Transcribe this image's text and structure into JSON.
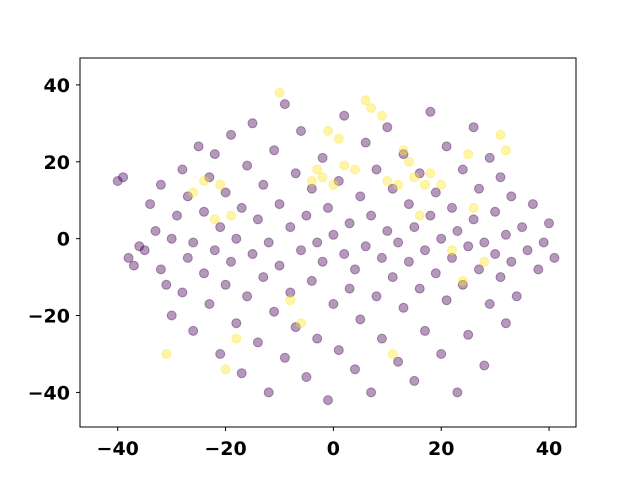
{
  "chart_data": {
    "type": "scatter",
    "title": "",
    "xlabel": "",
    "ylabel": "",
    "xlim": [
      -47,
      45
    ],
    "ylim": [
      -49,
      47
    ],
    "xticks": [
      -40,
      -20,
      0,
      20,
      40
    ],
    "yticks": [
      -40,
      -20,
      0,
      20,
      40
    ],
    "xtick_labels": [
      "−40",
      "−20",
      "0",
      "20",
      "40"
    ],
    "ytick_labels": [
      "−40",
      "−20",
      "0",
      "20",
      "40"
    ],
    "grid": false,
    "legend": "none",
    "marker_alpha": 0.4,
    "colors": {
      "class_0": "#440154",
      "class_1": "#fde725"
    },
    "series": [
      {
        "name": "",
        "color": "#440154",
        "points": [
          [
            -40,
            15
          ],
          [
            -39,
            16
          ],
          [
            -38,
            -5
          ],
          [
            -37,
            -7
          ],
          [
            -36,
            -2
          ],
          [
            -35,
            -3
          ],
          [
            -34,
            9
          ],
          [
            -33,
            2
          ],
          [
            -32,
            -8
          ],
          [
            -32,
            14
          ],
          [
            -31,
            -12
          ],
          [
            -30,
            -20
          ],
          [
            -30,
            0
          ],
          [
            -29,
            6
          ],
          [
            -28,
            -14
          ],
          [
            -28,
            18
          ],
          [
            -27,
            -5
          ],
          [
            -27,
            11
          ],
          [
            -26,
            -24
          ],
          [
            -26,
            -1
          ],
          [
            -25,
            24
          ],
          [
            -24,
            -9
          ],
          [
            -24,
            7
          ],
          [
            -23,
            -17
          ],
          [
            -23,
            16
          ],
          [
            -22,
            -3
          ],
          [
            -22,
            22
          ],
          [
            -21,
            -30
          ],
          [
            -21,
            3
          ],
          [
            -20,
            -12
          ],
          [
            -20,
            12
          ],
          [
            -19,
            -6
          ],
          [
            -19,
            27
          ],
          [
            -18,
            -22
          ],
          [
            -18,
            0
          ],
          [
            -17,
            -35
          ],
          [
            -17,
            8
          ],
          [
            -16,
            -15
          ],
          [
            -16,
            19
          ],
          [
            -15,
            -4
          ],
          [
            -15,
            30
          ],
          [
            -14,
            -27
          ],
          [
            -14,
            5
          ],
          [
            -13,
            -10
          ],
          [
            -13,
            14
          ],
          [
            -12,
            -40
          ],
          [
            -12,
            -1
          ],
          [
            -11,
            -19
          ],
          [
            -11,
            23
          ],
          [
            -10,
            -7
          ],
          [
            -10,
            9
          ],
          [
            -9,
            -31
          ],
          [
            -9,
            35
          ],
          [
            -8,
            -14
          ],
          [
            -8,
            3
          ],
          [
            -7,
            -23
          ],
          [
            -7,
            17
          ],
          [
            -6,
            -3
          ],
          [
            -6,
            28
          ],
          [
            -5,
            -36
          ],
          [
            -5,
            6
          ],
          [
            -4,
            -11
          ],
          [
            -4,
            13
          ],
          [
            -3,
            -26
          ],
          [
            -3,
            -1
          ],
          [
            -2,
            -6
          ],
          [
            -2,
            21
          ],
          [
            -1,
            -42
          ],
          [
            -1,
            8
          ],
          [
            0,
            -17
          ],
          [
            0,
            1
          ],
          [
            1,
            -29
          ],
          [
            1,
            15
          ],
          [
            2,
            -4
          ],
          [
            2,
            32
          ],
          [
            3,
            -13
          ],
          [
            3,
            4
          ],
          [
            4,
            -34
          ],
          [
            4,
            -8
          ],
          [
            5,
            -21
          ],
          [
            5,
            11
          ],
          [
            6,
            -2
          ],
          [
            6,
            25
          ],
          [
            7,
            -40
          ],
          [
            7,
            6
          ],
          [
            8,
            -15
          ],
          [
            8,
            18
          ],
          [
            9,
            -26
          ],
          [
            9,
            -5
          ],
          [
            10,
            2
          ],
          [
            10,
            29
          ],
          [
            11,
            -10
          ],
          [
            11,
            13
          ],
          [
            12,
            -32
          ],
          [
            12,
            -1
          ],
          [
            13,
            -18
          ],
          [
            13,
            22
          ],
          [
            14,
            -6
          ],
          [
            14,
            9
          ],
          [
            15,
            -37
          ],
          [
            15,
            3
          ],
          [
            16,
            -13
          ],
          [
            16,
            17
          ],
          [
            17,
            -24
          ],
          [
            17,
            -3
          ],
          [
            18,
            6
          ],
          [
            18,
            33
          ],
          [
            19,
            -9
          ],
          [
            19,
            12
          ],
          [
            20,
            -30
          ],
          [
            20,
            0
          ],
          [
            21,
            -16
          ],
          [
            21,
            24
          ],
          [
            22,
            -5
          ],
          [
            22,
            8
          ],
          [
            23,
            -40
          ],
          [
            23,
            2
          ],
          [
            24,
            -12
          ],
          [
            24,
            18
          ],
          [
            25,
            -25
          ],
          [
            25,
            -2
          ],
          [
            26,
            5
          ],
          [
            26,
            29
          ],
          [
            27,
            -8
          ],
          [
            27,
            13
          ],
          [
            28,
            -33
          ],
          [
            28,
            -1
          ],
          [
            29,
            -17
          ],
          [
            29,
            21
          ],
          [
            30,
            -4
          ],
          [
            30,
            7
          ],
          [
            31,
            -10
          ],
          [
            31,
            16
          ],
          [
            32,
            -22
          ],
          [
            32,
            1
          ],
          [
            33,
            -6
          ],
          [
            33,
            11
          ],
          [
            34,
            -15
          ],
          [
            35,
            3
          ],
          [
            36,
            -3
          ],
          [
            37,
            9
          ],
          [
            38,
            -8
          ],
          [
            39,
            -1
          ],
          [
            40,
            4
          ],
          [
            41,
            -5
          ]
        ]
      },
      {
        "name": "",
        "color": "#fde725",
        "points": [
          [
            -31,
            -30
          ],
          [
            -26,
            12
          ],
          [
            -24,
            15
          ],
          [
            -22,
            5
          ],
          [
            -21,
            14
          ],
          [
            -20,
            -34
          ],
          [
            -19,
            6
          ],
          [
            -18,
            -26
          ],
          [
            -10,
            38
          ],
          [
            -8,
            -16
          ],
          [
            -6,
            -22
          ],
          [
            -4,
            15
          ],
          [
            -3,
            18
          ],
          [
            -2,
            16
          ],
          [
            -1,
            28
          ],
          [
            0,
            14
          ],
          [
            1,
            26
          ],
          [
            2,
            19
          ],
          [
            4,
            18
          ],
          [
            6,
            36
          ],
          [
            7,
            34
          ],
          [
            9,
            32
          ],
          [
            10,
            15
          ],
          [
            11,
            -30
          ],
          [
            12,
            14
          ],
          [
            13,
            23
          ],
          [
            14,
            20
          ],
          [
            15,
            16
          ],
          [
            16,
            6
          ],
          [
            17,
            14
          ],
          [
            18,
            17
          ],
          [
            20,
            14
          ],
          [
            22,
            -3
          ],
          [
            24,
            -11
          ],
          [
            25,
            22
          ],
          [
            26,
            8
          ],
          [
            28,
            -6
          ],
          [
            31,
            27
          ],
          [
            32,
            23
          ]
        ]
      }
    ]
  }
}
